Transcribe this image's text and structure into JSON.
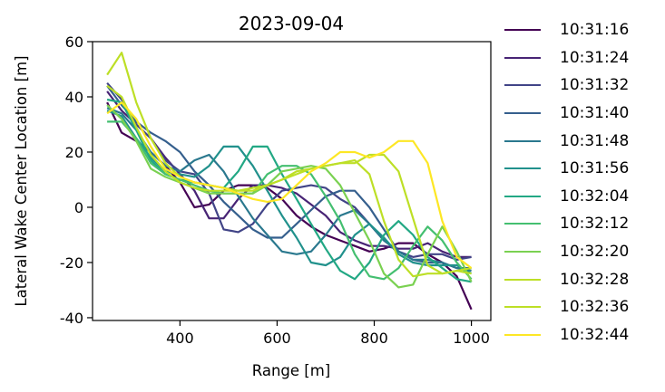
{
  "chart_data": {
    "type": "line",
    "title": "2023-09-04",
    "xlabel": "Range [m]",
    "ylabel": "Lateral Wake Center Location [m]",
    "xlim": [
      220,
      1040
    ],
    "ylim": [
      -41,
      60
    ],
    "xticks": [
      400,
      600,
      800,
      1000
    ],
    "yticks": [
      -40,
      -20,
      0,
      20,
      40,
      60
    ],
    "grid": false,
    "legend_position": "outside-right",
    "x": [
      250,
      280,
      310,
      340,
      370,
      400,
      430,
      460,
      490,
      520,
      550,
      580,
      610,
      640,
      670,
      700,
      730,
      760,
      790,
      820,
      850,
      880,
      910,
      940,
      970,
      1000
    ],
    "series": [
      {
        "name": "10:31:16",
        "color": "#440154",
        "values": [
          38,
          27,
          24,
          20,
          15,
          9,
          0,
          1,
          6,
          8,
          8,
          7,
          3,
          -3,
          -7,
          -10,
          -12,
          -14,
          -16,
          -15,
          -13,
          -13,
          -17,
          -20,
          -25,
          -37
        ]
      },
      {
        "name": "10:31:24",
        "color": "#482475",
        "values": [
          42,
          35,
          30,
          25,
          18,
          12,
          6,
          -4,
          -4,
          3,
          8,
          8,
          7,
          5,
          1,
          -3,
          -9,
          -12,
          -14,
          -14,
          -15,
          -15,
          -13,
          -16,
          -18,
          -18
        ]
      },
      {
        "name": "10:31:32",
        "color": "#414487",
        "values": [
          45,
          39,
          30,
          25,
          17,
          13,
          12,
          5,
          -8,
          -9,
          -6,
          1,
          6,
          7,
          8,
          7,
          3,
          0,
          -6,
          -12,
          -16,
          -18,
          -17,
          -17,
          -19,
          -18
        ]
      },
      {
        "name": "10:31:40",
        "color": "#355f8d",
        "values": [
          44,
          37,
          31,
          27,
          24,
          20,
          13,
          8,
          2,
          -3,
          -8,
          -11,
          -11,
          -6,
          -1,
          4,
          6,
          6,
          0,
          -8,
          -16,
          -19,
          -20,
          -20,
          -22,
          -22
        ]
      },
      {
        "name": "10:31:48",
        "color": "#2a788e",
        "values": [
          36,
          34,
          28,
          20,
          15,
          13,
          17,
          19,
          13,
          4,
          -4,
          -10,
          -16,
          -17,
          -16,
          -10,
          -3,
          -1,
          -6,
          -12,
          -16,
          -19,
          -19,
          -20,
          -22,
          -23
        ]
      },
      {
        "name": "10:31:56",
        "color": "#21918c",
        "values": [
          35,
          33,
          25,
          18,
          13,
          12,
          11,
          15,
          22,
          22,
          15,
          6,
          -3,
          -11,
          -20,
          -21,
          -18,
          -10,
          -6,
          -11,
          -17,
          -20,
          -21,
          -21,
          -21,
          -24
        ]
      },
      {
        "name": "10:32:04",
        "color": "#22a884",
        "values": [
          39,
          38,
          28,
          17,
          12,
          10,
          9,
          8,
          7,
          13,
          22,
          22,
          12,
          3,
          -6,
          -15,
          -23,
          -26,
          -20,
          -10,
          -5,
          -10,
          -18,
          -22,
          -26,
          -27
        ]
      },
      {
        "name": "10:32:12",
        "color": "#44bf70",
        "values": [
          31,
          31,
          25,
          16,
          12,
          10,
          8,
          6,
          5,
          5,
          5,
          12,
          15,
          15,
          12,
          4,
          -5,
          -17,
          -25,
          -26,
          -22,
          -14,
          -7,
          -12,
          -20,
          -26
        ]
      },
      {
        "name": "10:32:20",
        "color": "#7ad151",
        "values": [
          37,
          32,
          24,
          14,
          11,
          9,
          7,
          5,
          5,
          5,
          5,
          8,
          13,
          14,
          15,
          14,
          8,
          -2,
          -12,
          -24,
          -29,
          -28,
          -17,
          -7,
          -16,
          -27
        ]
      },
      {
        "name": "10:32:28",
        "color": "#bddf26",
        "values": [
          44,
          40,
          29,
          19,
          13,
          9,
          7,
          6,
          6,
          6,
          7,
          8,
          10,
          12,
          14,
          15,
          16,
          17,
          12,
          -5,
          -19,
          -25,
          -24,
          -24,
          -23,
          -24
        ]
      },
      {
        "name": "10:32:36",
        "color": "#bddf26",
        "values": [
          48,
          56,
          38,
          25,
          16,
          11,
          9,
          8,
          7,
          6,
          6,
          8,
          10,
          13,
          14,
          15,
          16,
          16,
          19,
          19,
          13,
          -4,
          -21,
          -24,
          -23,
          -22
        ]
      },
      {
        "name": "10:32:44",
        "color": "#fde725",
        "values": [
          34,
          38,
          32,
          22,
          14,
          11,
          9,
          8,
          7,
          5,
          3,
          2,
          3,
          8,
          13,
          16,
          20,
          20,
          18,
          20,
          24,
          24,
          16,
          -5,
          -18,
          -22
        ]
      }
    ]
  }
}
